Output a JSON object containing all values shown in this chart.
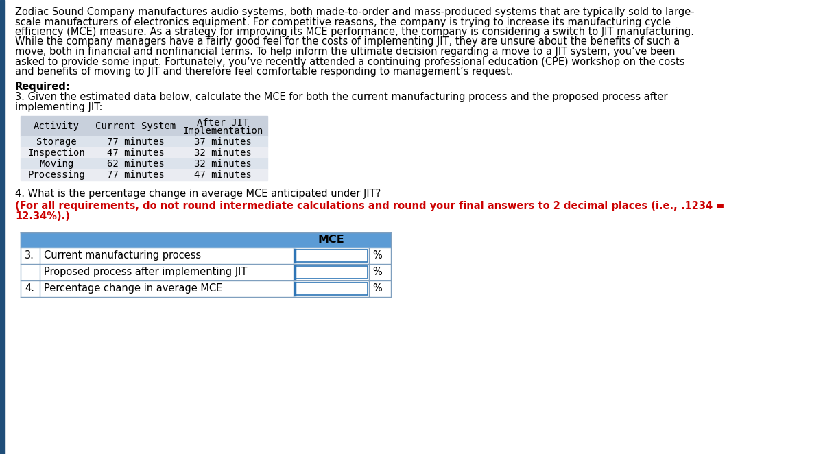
{
  "para_lines": [
    "Zodiac Sound Company manufactures audio systems, both made-to-order and mass-produced systems that are typically sold to large-",
    "scale manufacturers of electronics equipment. For competitive reasons, the company is trying to increase its manufacturing cycle",
    "efficiency (MCE) measure. As a strategy for improving its MCE performance, the company is considering a switch to JIT manufacturing.",
    "While the company managers have a fairly good feel for the costs of implementing JIT, they are unsure about the benefits of such a",
    "move, both in financial and nonfinancial terms. To help inform the ultimate decision regarding a move to a JIT system, you’ve been",
    "asked to provide some input. Fortunately, you’ve recently attended a continuing professional education (CPE) workshop on the costs",
    "and benefits of moving to JIT and therefore feel comfortable responding to management’s request."
  ],
  "required_label": "Required:",
  "q3_lines": [
    "3. Given the estimated data below, calculate the MCE for both the current manufacturing process and the proposed process after",
    "implementing JIT:"
  ],
  "table1_headers": [
    "Activity",
    "Current System",
    "After JIT\nImplementation"
  ],
  "table1_rows": [
    [
      "Storage",
      "77 minutes",
      "37 minutes"
    ],
    [
      "Inspection",
      "47 minutes",
      "32 minutes"
    ],
    [
      "Moving",
      "62 minutes",
      "32 minutes"
    ],
    [
      "Processing",
      "77 minutes",
      "47 minutes"
    ]
  ],
  "q4_text": "4. What is the percentage change in average MCE anticipated under JIT?",
  "note_lines": [
    "(For all requirements, do not round intermediate calculations and round your final answers to 2 decimal places (i.e., .1234 =",
    "12.34%).)"
  ],
  "table2_header": "MCE",
  "table2_rows": [
    [
      "3.",
      "Current manufacturing process",
      "%"
    ],
    [
      "",
      "Proposed process after implementing JIT",
      "%"
    ],
    [
      "4.",
      "Percentage change in average MCE",
      "%"
    ]
  ],
  "bg_color": "#ffffff",
  "text_color": "#000000",
  "red_color": "#cc0000",
  "table1_header_bg": "#c8d0dc",
  "table1_row_bg_a": "#dce3ec",
  "table1_row_bg_b": "#eaecf2",
  "table2_header_bg": "#5b9bd5",
  "table2_row_bg": "#dce3ec",
  "left_bar_color": "#1f4e79",
  "border_color": "#7f9fbe",
  "input_border_color": "#2e75b6"
}
